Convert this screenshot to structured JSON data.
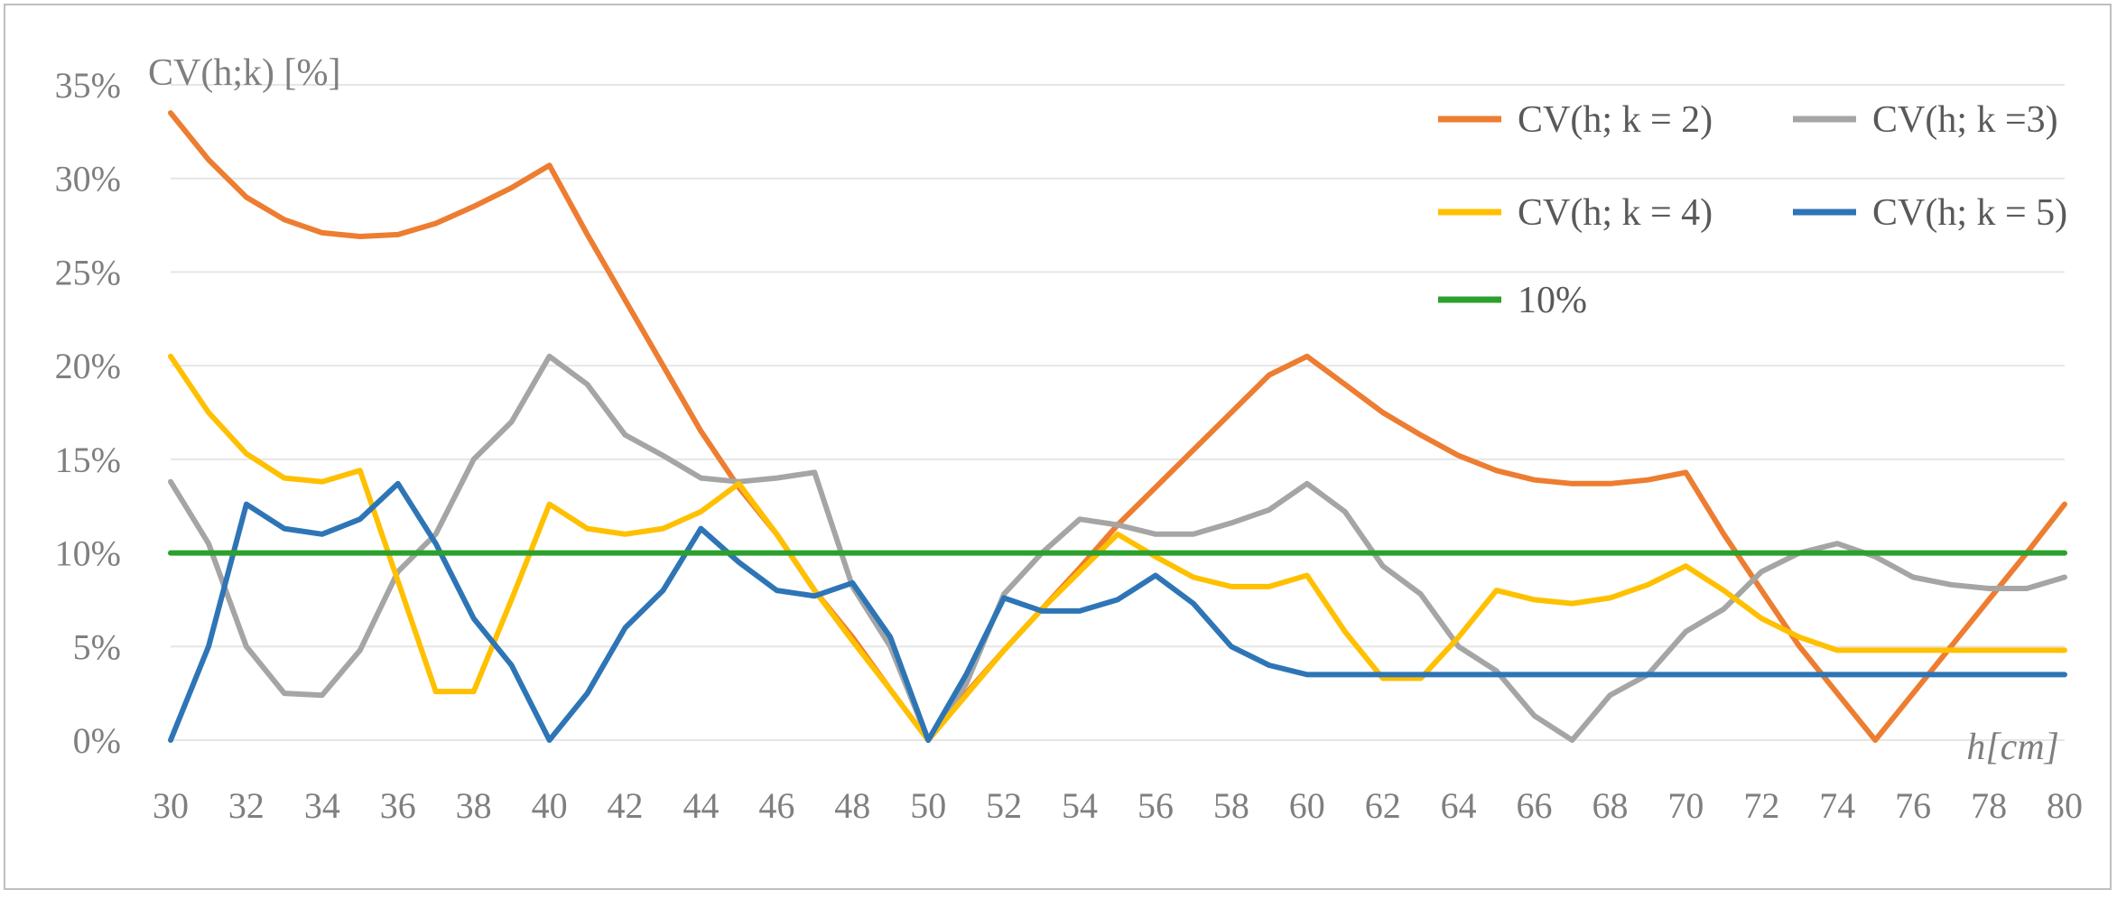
{
  "chart_data": {
    "type": "line",
    "ylabel": "CV(h;k) [%]",
    "xlabel": "h[cm]",
    "ylim": [
      0,
      35
    ],
    "xlim": [
      30,
      80
    ],
    "y_ticks": [
      "0%",
      "5%",
      "10%",
      "15%",
      "20%",
      "25%",
      "30%",
      "35%"
    ],
    "x_ticks": [
      "30",
      "32",
      "34",
      "36",
      "38",
      "40",
      "42",
      "44",
      "46",
      "48",
      "50",
      "52",
      "54",
      "56",
      "58",
      "60",
      "62",
      "64",
      "66",
      "68",
      "70",
      "72",
      "74",
      "76",
      "78",
      "80"
    ],
    "grid": "horizontal",
    "legend_position": "top-right",
    "x": [
      30,
      31,
      32,
      33,
      34,
      35,
      36,
      37,
      38,
      39,
      40,
      41,
      42,
      43,
      44,
      45,
      46,
      47,
      48,
      49,
      50,
      51,
      52,
      53,
      54,
      55,
      56,
      57,
      58,
      59,
      60,
      61,
      62,
      63,
      64,
      65,
      66,
      67,
      68,
      69,
      70,
      71,
      72,
      73,
      74,
      75,
      76,
      77,
      78,
      79,
      80
    ],
    "series": [
      {
        "name": "CV(h; k = 2)",
        "color": "#ed7d31",
        "values": [
          33.5,
          31.0,
          29.0,
          27.8,
          27.1,
          26.9,
          27.0,
          27.6,
          28.5,
          29.5,
          30.7,
          27.0,
          23.5,
          20.0,
          16.5,
          13.5,
          11.0,
          8.0,
          5.5,
          2.7,
          0.0,
          2.5,
          4.8,
          7.0,
          9.2,
          11.5,
          13.5,
          15.5,
          17.5,
          19.5,
          20.5,
          19.0,
          17.5,
          16.3,
          15.2,
          14.4,
          13.9,
          13.7,
          13.7,
          13.9,
          14.3,
          11.0,
          8.0,
          5.0,
          2.5,
          0.0,
          2.5,
          5.0,
          7.5,
          10.0,
          12.6
        ]
      },
      {
        "name": "CV(h; k =3)",
        "color": "#a5a5a5",
        "values": [
          13.8,
          10.5,
          5.0,
          2.5,
          2.4,
          4.8,
          9.0,
          11.0,
          15.0,
          17.0,
          20.5,
          19.0,
          16.3,
          15.2,
          14.0,
          13.8,
          14.0,
          14.3,
          8.2,
          5.0,
          0.0,
          3.0,
          7.8,
          10.0,
          11.8,
          11.5,
          11.0,
          11.0,
          11.6,
          12.3,
          13.7,
          12.2,
          9.3,
          7.8,
          5.0,
          3.7,
          1.3,
          0.0,
          2.4,
          3.5,
          5.8,
          7.0,
          9.0,
          10.0,
          10.5,
          9.8,
          8.7,
          8.3,
          8.1,
          8.1,
          8.7
        ]
      },
      {
        "name": "CV(h; k = 4)",
        "color": "#ffc000",
        "values": [
          20.5,
          17.5,
          15.3,
          14.0,
          13.8,
          14.4,
          8.5,
          2.6,
          2.6,
          7.5,
          12.6,
          11.3,
          11.0,
          11.3,
          12.2,
          13.7,
          11.0,
          8.0,
          5.3,
          2.7,
          0.0,
          2.4,
          4.8,
          7.0,
          9.0,
          11.0,
          9.8,
          8.7,
          8.2,
          8.2,
          8.8,
          5.8,
          3.3,
          3.3,
          5.5,
          8.0,
          7.5,
          7.3,
          7.6,
          8.3,
          9.3,
          8.0,
          6.5,
          5.5,
          4.8,
          4.8,
          4.8,
          4.8,
          4.8,
          4.8,
          4.8
        ]
      },
      {
        "name": "CV(h; k = 5)",
        "color": "#2e75b6",
        "values": [
          0.0,
          5.0,
          12.6,
          11.3,
          11.0,
          11.8,
          13.7,
          10.5,
          6.5,
          4.0,
          0.0,
          2.5,
          6.0,
          8.0,
          11.3,
          9.5,
          8.0,
          7.7,
          8.4,
          5.5,
          0.0,
          3.5,
          7.6,
          6.9,
          6.9,
          7.5,
          8.8,
          7.3,
          5.0,
          4.0,
          3.5,
          3.5,
          3.5,
          3.5,
          3.5,
          3.5,
          3.5,
          3.5,
          3.5,
          3.5,
          3.5,
          3.5,
          3.5,
          3.5,
          3.5,
          3.5,
          3.5,
          3.5,
          3.5,
          3.5,
          3.5
        ]
      },
      {
        "name": "10%",
        "color": "#2ca02c",
        "values": [
          10,
          10,
          10,
          10,
          10,
          10,
          10,
          10,
          10,
          10,
          10,
          10,
          10,
          10,
          10,
          10,
          10,
          10,
          10,
          10,
          10,
          10,
          10,
          10,
          10,
          10,
          10,
          10,
          10,
          10,
          10,
          10,
          10,
          10,
          10,
          10,
          10,
          10,
          10,
          10,
          10,
          10,
          10,
          10,
          10,
          10,
          10,
          10,
          10,
          10,
          10
        ]
      }
    ]
  }
}
